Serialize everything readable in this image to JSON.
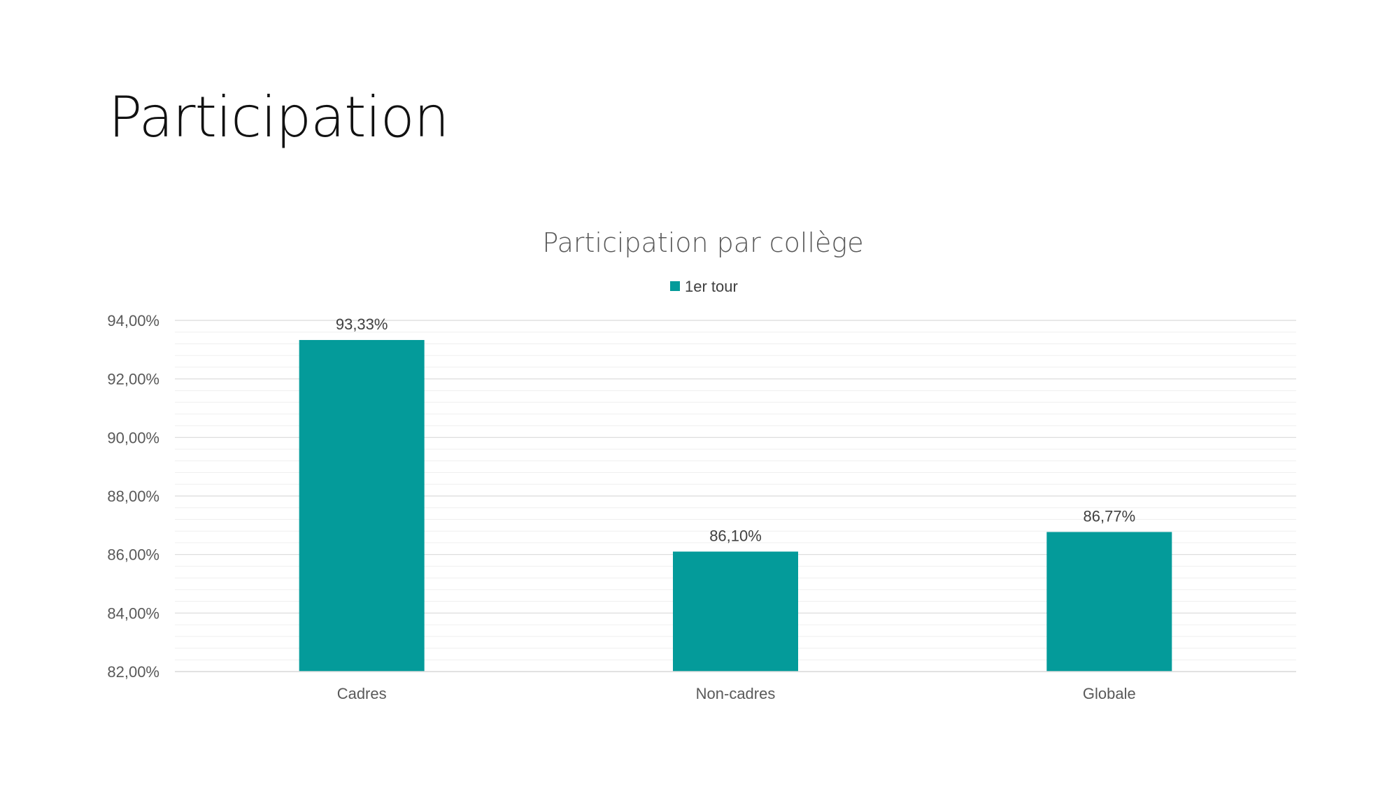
{
  "slide": {
    "title": "Participation"
  },
  "chart_data": {
    "type": "bar",
    "title": "Participation par collège",
    "categories": [
      "Cadres",
      "Non-cadres",
      "Globale"
    ],
    "series": [
      {
        "name": "1er tour",
        "values": [
          93.33,
          86.1,
          86.77
        ],
        "labels": [
          "93,33%",
          "86,10%",
          "86,77%"
        ],
        "color": "#049B9A"
      }
    ],
    "ylim": [
      82,
      94
    ],
    "yticks": [
      82,
      84,
      86,
      88,
      90,
      92,
      94
    ],
    "ytick_labels": [
      "82,00%",
      "84,00%",
      "86,00%",
      "88,00%",
      "90,00%",
      "92,00%",
      "94,00%"
    ],
    "minor_step": 0.4,
    "xlabel": "",
    "ylabel": "",
    "grid": true,
    "legend_position": "top"
  },
  "colors": {
    "bar": "#049B9A",
    "grid_major": "#D9D9D9",
    "grid_minor": "#EFEFEF",
    "text": "#595959"
  }
}
